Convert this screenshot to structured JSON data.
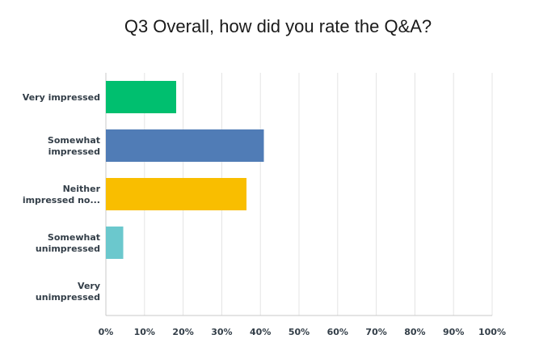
{
  "chart_data": {
    "type": "bar",
    "orientation": "horizontal",
    "title": "Q3 Overall, how did you rate the Q&A?",
    "categories": [
      [
        "Very impressed"
      ],
      [
        "Somewhat",
        "impressed"
      ],
      [
        "Neither",
        "impressed no..."
      ],
      [
        "Somewhat",
        "unimpressed"
      ],
      [
        "Very",
        "unimpressed"
      ]
    ],
    "values": [
      18.2,
      40.9,
      36.4,
      4.5,
      0
    ],
    "colors": [
      "#00bf6f",
      "#507cb6",
      "#f9be00",
      "#6bc8cd",
      "#ff8b4f"
    ],
    "xlim": [
      0,
      100
    ],
    "x_ticks": [
      "0%",
      "10%",
      "20%",
      "30%",
      "40%",
      "50%",
      "60%",
      "70%",
      "80%",
      "90%",
      "100%"
    ],
    "grid": true,
    "legend": false
  }
}
